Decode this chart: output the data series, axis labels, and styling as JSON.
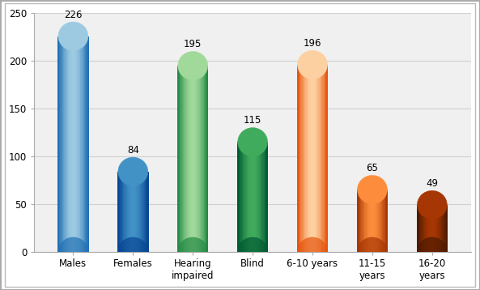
{
  "categories": [
    "Males",
    "Females",
    "Hearing\nimpaired",
    "Blind",
    "6-10 years",
    "11-15\nyears",
    "16-20\nyears"
  ],
  "values": [
    226,
    84,
    195,
    115,
    196,
    65,
    49
  ],
  "bar_face_colors": [
    "#6baed6",
    "#2171b5",
    "#74c476",
    "#238b45",
    "#fdae6b",
    "#d94801",
    "#7f2704"
  ],
  "bar_light_colors": [
    "#9ecae1",
    "#4292c6",
    "#a1d99b",
    "#41ab5d",
    "#fdd0a2",
    "#fd8d3c",
    "#a63603"
  ],
  "bar_dark_colors": [
    "#2171b5",
    "#084594",
    "#238b45",
    "#005a32",
    "#e6550d",
    "#a63603",
    "#4d1a00"
  ],
  "ylim": [
    0,
    250
  ],
  "yticks": [
    0,
    50,
    100,
    150,
    200,
    250
  ],
  "plot_bg_color": "#f0f0f0",
  "background_color": "#ffffff",
  "grid_color": "#d0d0d0",
  "label_fontsize": 8.5,
  "value_fontsize": 8.5,
  "bar_width": 0.5,
  "ellipse_ratio": 0.12
}
